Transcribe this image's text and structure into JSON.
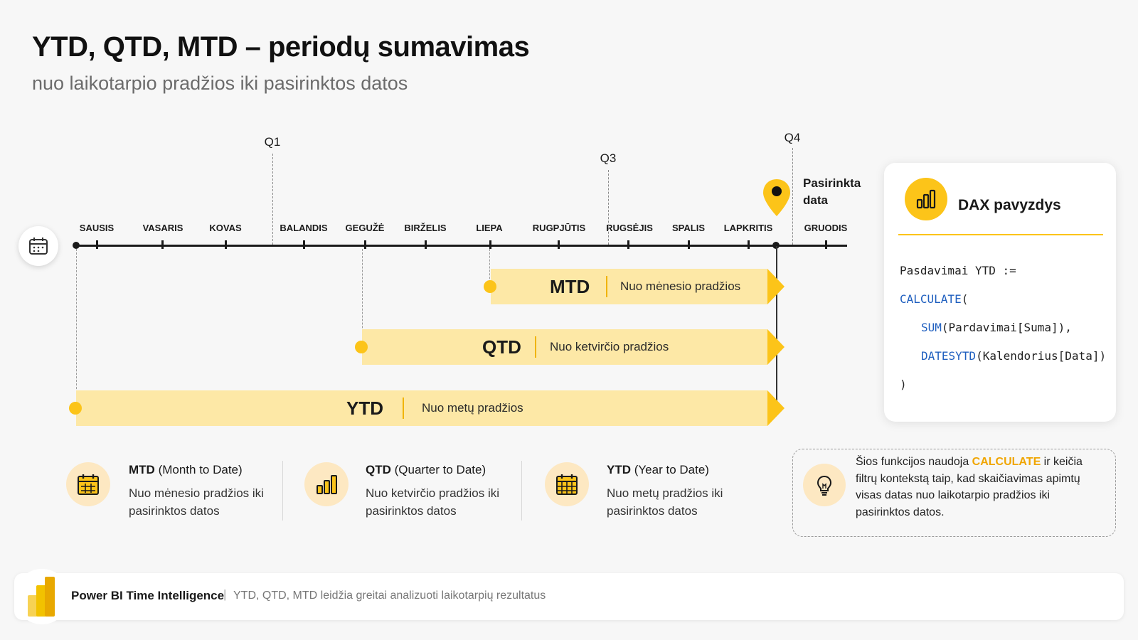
{
  "title": "YTD, QTD, MTD – periodų sumavimas",
  "subtitle": "nuo laikotarpio pradžios iki pasirinktos datos",
  "timeline": {
    "months": [
      "SAUSIS",
      "VASARIS",
      "KOVAS",
      "BALANDIS",
      "GEGUŽĖ",
      "BIRŽELIS",
      "LIEPA",
      "RUGPJŪTIS",
      "RUGSĖJIS",
      "SPALIS",
      "LAPKRITIS",
      "GRUODIS"
    ],
    "quarters": [
      "Q1",
      "Q3",
      "Q4"
    ],
    "selected_label": [
      "Pasirinkta",
      "data"
    ]
  },
  "bars": [
    {
      "name": "MTD",
      "desc": "Nuo mėnesio pradžios"
    },
    {
      "name": "QTD",
      "desc": "Nuo ketvirčio pradžios"
    },
    {
      "name": "YTD",
      "desc": "Nuo metų pradžios"
    }
  ],
  "dax": {
    "title": "DAX pavyzdys",
    "line1": "Pasdavimai YTD :=",
    "kw_calculate": "CALCULATE",
    "paren_open": "(",
    "kw_sum": "SUM",
    "sum_args": "(Pardavimai[Suma]),",
    "kw_datesytd": "DATESYTD",
    "datesytd_args": "(Kalendorius[Data])",
    "paren_close": ")"
  },
  "legend": [
    {
      "abbr": "MTD",
      "full": "(Month to Date)",
      "desc": "Nuo mėnesio pradžios iki pasirinktos datos"
    },
    {
      "abbr": "QTD",
      "full": "(Quarter to Date)",
      "desc": "Nuo ketvirčio pradžios iki pasirinktos datos"
    },
    {
      "abbr": "YTD",
      "full": "(Year to Date)",
      "desc": "Nuo metų pradžios iki pasirinktos datos"
    }
  ],
  "note": {
    "before": "Šios funkcijos naudoja ",
    "highlight": "CALCULATE",
    "after": " ir keičia filtrų kontekstą taip, kad skaičiavimas apimtų visas datas nuo laikotarpio pradžios iki pasirinktos datos."
  },
  "footer": {
    "brand": "Power BI Time Intelligence",
    "separator": "|",
    "text": "YTD, QTD, MTD leidžia greitai analizuoti laikotarpių rezultatus"
  },
  "colors": {
    "accent": "#fcc419",
    "bar_fill": "#fde8a6",
    "code_keyword": "#1f5fbf"
  }
}
